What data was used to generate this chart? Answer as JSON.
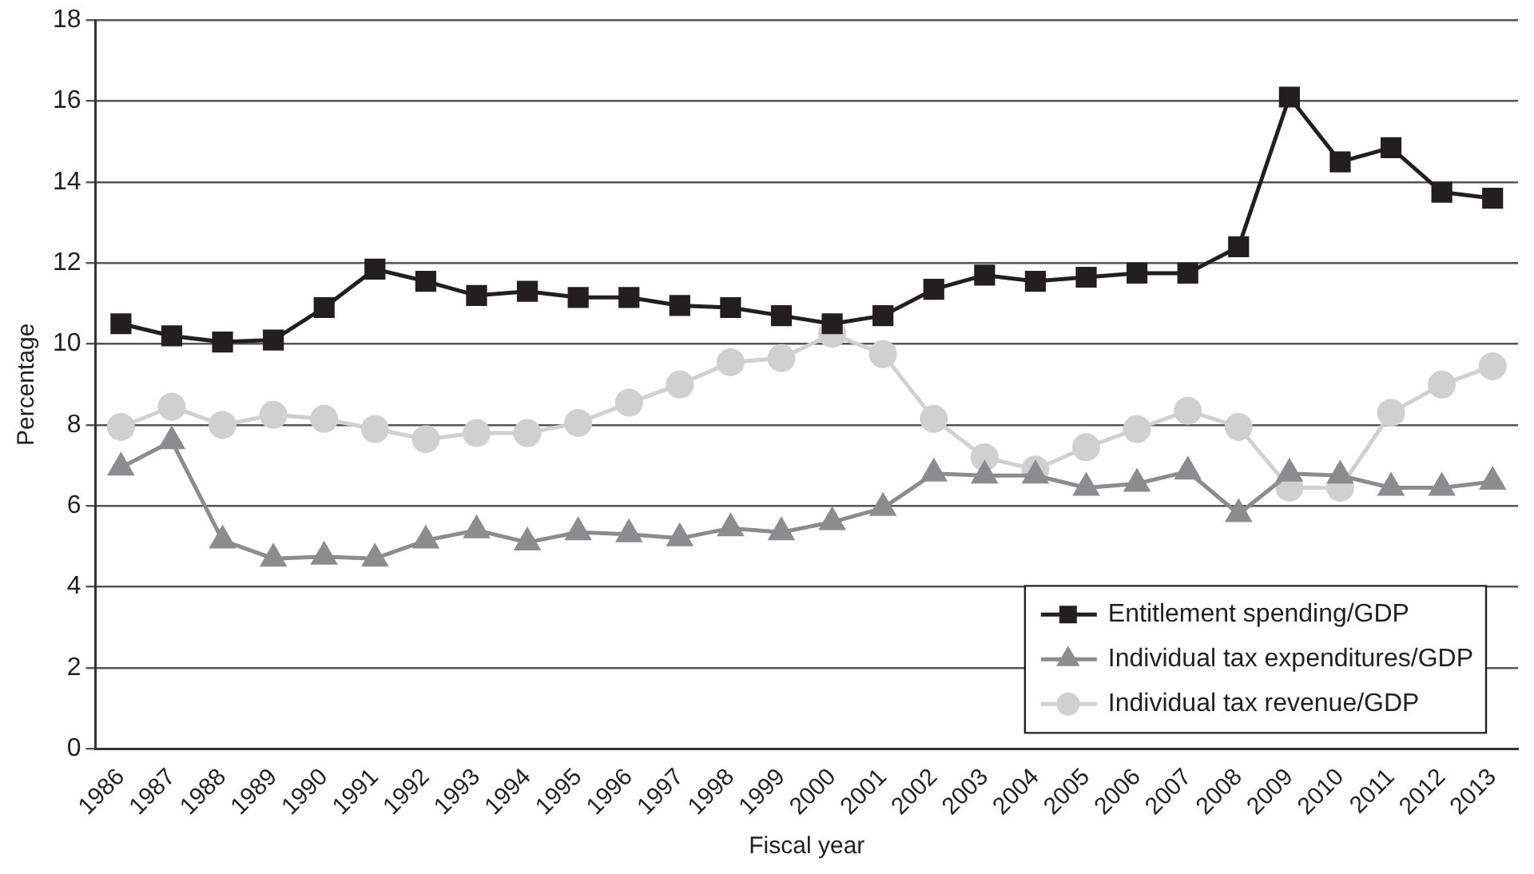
{
  "chart_data": {
    "type": "line",
    "xlabel": "Fiscal year",
    "ylabel": "Percentage",
    "categories": [
      "1986",
      "1987",
      "1988",
      "1989",
      "1990",
      "1991",
      "1992",
      "1993",
      "1994",
      "1995",
      "1996",
      "1997",
      "1998",
      "1999",
      "2000",
      "2001",
      "2002",
      "2003",
      "2004",
      "2005",
      "2006",
      "2007",
      "2008",
      "2009",
      "2010",
      "2011",
      "2012",
      "2013"
    ],
    "series": [
      {
        "name": "Entitlement spending/GDP",
        "color": "#231f20",
        "marker": "square",
        "values": [
          10.5,
          10.2,
          10.05,
          10.1,
          10.9,
          11.85,
          11.55,
          11.2,
          11.3,
          11.15,
          11.15,
          10.95,
          10.9,
          10.7,
          10.5,
          10.7,
          11.35,
          11.7,
          11.55,
          11.65,
          11.75,
          11.75,
          12.4,
          16.1,
          14.5,
          14.85,
          13.75,
          13.6
        ]
      },
      {
        "name": "Individual tax expenditures/GDP",
        "color": "#8c8c8e",
        "marker": "triangle",
        "values": [
          6.95,
          7.6,
          5.15,
          4.7,
          4.75,
          4.7,
          5.15,
          5.4,
          5.1,
          5.35,
          5.3,
          5.2,
          5.45,
          5.35,
          5.6,
          5.95,
          6.8,
          6.75,
          6.75,
          6.45,
          6.55,
          6.85,
          5.8,
          6.8,
          6.75,
          6.45,
          6.45,
          6.6
        ]
      },
      {
        "name": "Individual tax revenue/GDP",
        "color": "#d0d0d0",
        "marker": "circle",
        "values": [
          7.95,
          8.45,
          8.0,
          8.25,
          8.15,
          7.9,
          7.65,
          7.8,
          7.8,
          8.05,
          8.55,
          9.0,
          9.55,
          9.65,
          10.25,
          9.75,
          8.15,
          7.2,
          6.9,
          7.45,
          7.9,
          8.35,
          7.95,
          6.45,
          6.45,
          8.3,
          9.0,
          9.45
        ]
      }
    ],
    "ylim": [
      0,
      18
    ],
    "yticks": [
      0,
      2,
      4,
      6,
      8,
      10,
      12,
      14,
      16,
      18
    ],
    "grid": "y",
    "legend": "bottom right"
  }
}
